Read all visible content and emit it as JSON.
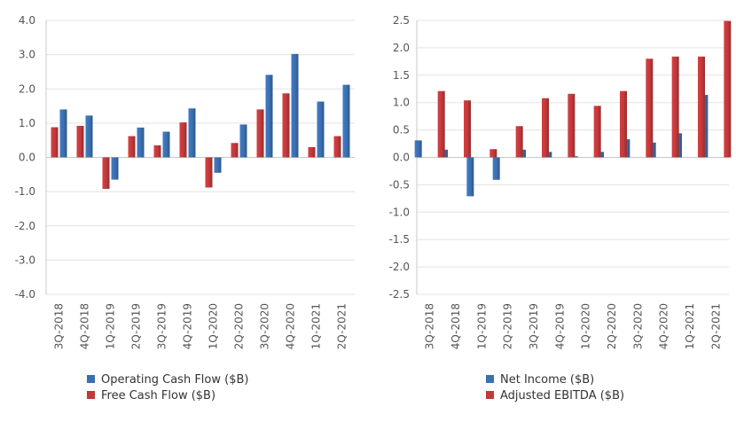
{
  "colors": {
    "blue": "#3a6fb0",
    "red": "#c0393b",
    "grid": "#e3e3e3",
    "axis": "#c8c8c8",
    "tick": "#555555"
  },
  "chart_data": [
    {
      "type": "bar",
      "categories": [
        "3Q-2018",
        "4Q-2018",
        "1Q-2019",
        "2Q-2019",
        "3Q-2019",
        "4Q-2019",
        "1Q-2020",
        "2Q-2020",
        "3Q-2020",
        "4Q-2020",
        "1Q-2021",
        "2Q-2021"
      ],
      "series": [
        {
          "name": "Free Cash Flow ($B)",
          "color": "red",
          "values": [
            0.88,
            0.92,
            -0.92,
            0.62,
            0.35,
            1.02,
            -0.88,
            0.42,
            1.4,
            1.87,
            0.3,
            0.62
          ]
        },
        {
          "name": "Operating Cash Flow ($B)",
          "color": "blue",
          "values": [
            1.4,
            1.22,
            -0.65,
            0.87,
            0.75,
            1.43,
            -0.45,
            0.96,
            2.41,
            3.02,
            1.63,
            2.12
          ]
        }
      ],
      "legend_order": [
        1,
        0
      ],
      "ylim": [
        -4.0,
        4.0
      ],
      "yticks": [
        "4.0",
        "3.0",
        "2.0",
        "1.0",
        "0.0",
        "-1.0",
        "-2.0",
        "-3.0",
        "-4.0"
      ],
      "grid": "horizontal",
      "legend_position": "bottom"
    },
    {
      "type": "bar",
      "categories": [
        "3Q-2018",
        "4Q-2018",
        "1Q-2019",
        "2Q-2019",
        "3Q-2019",
        "4Q-2019",
        "1Q-2020",
        "2Q-2020",
        "3Q-2020",
        "4Q-2020",
        "1Q-2021",
        "2Q-2021"
      ],
      "series": [
        {
          "name": "Net Income ($B)",
          "color": "blue",
          "values": [
            0.31,
            0.14,
            -0.71,
            -0.41,
            0.14,
            0.1,
            0.02,
            0.1,
            0.33,
            0.27,
            0.44,
            1.14
          ]
        },
        {
          "name": "Adjusted EBITDA ($B)",
          "color": "red",
          "values": [
            1.21,
            1.04,
            0.15,
            0.57,
            1.08,
            1.16,
            0.94,
            1.21,
            1.8,
            1.84,
            1.84,
            2.49
          ]
        }
      ],
      "legend_order": [
        0,
        1
      ],
      "ylim": [
        -2.5,
        2.5
      ],
      "yticks": [
        "2.5",
        "2.0",
        "1.5",
        "1.0",
        "0.5",
        "0.0",
        "-0.5",
        "-1.0",
        "-1.5",
        "-2.0",
        "-2.5"
      ],
      "grid": "horizontal",
      "legend_position": "bottom"
    }
  ]
}
